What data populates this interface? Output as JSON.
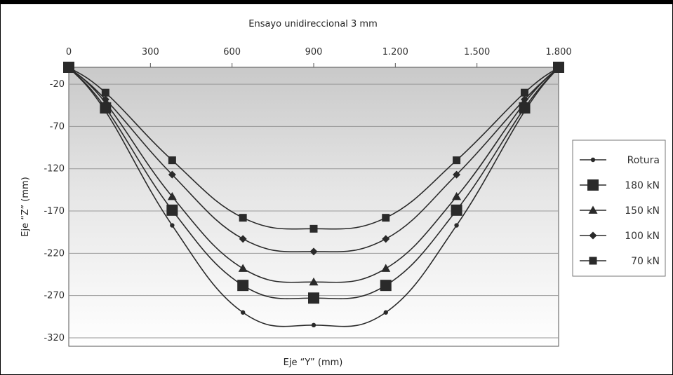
{
  "chart_data": {
    "type": "line",
    "title": "Ensayo unidireccional 3 mm",
    "xlabel": "Eje “Y” (mm)",
    "ylabel": "Eje “Z” (mm)",
    "xlim": [
      0,
      1800
    ],
    "ylim": [
      -330,
      0
    ],
    "x_ticks": [
      0,
      300,
      600,
      900,
      1200,
      1500,
      1800
    ],
    "x_tick_labels": [
      "0",
      "300",
      "600",
      "900",
      "1.200",
      "1.500",
      "1.800"
    ],
    "y_ticks": [
      -20,
      -70,
      -120,
      -170,
      -220,
      -270,
      -320
    ],
    "y_tick_labels": [
      "-20",
      "-70",
      "-120",
      "-170",
      "-220",
      "-270",
      "-320"
    ],
    "x": [
      0,
      135,
      380,
      640,
      900,
      1165,
      1425,
      1675,
      1800
    ],
    "grid": true,
    "legend_position": "right",
    "series": [
      {
        "name": "Rotura",
        "marker": "circle",
        "values": [
          0,
          -52,
          -187,
          -290,
          -305,
          -290,
          -187,
          -52,
          0
        ]
      },
      {
        "name": "180 kN",
        "marker": "large-square",
        "values": [
          0,
          -48,
          -169,
          -258,
          -273,
          -258,
          -169,
          -48,
          0
        ]
      },
      {
        "name": "150 kN",
        "marker": "triangle",
        "values": [
          0,
          -42,
          -153,
          -238,
          -254,
          -238,
          -153,
          -42,
          0
        ]
      },
      {
        "name": "100 kN",
        "marker": "diamond",
        "values": [
          0,
          -38,
          -127,
          -203,
          -218,
          -203,
          -127,
          -38,
          0
        ]
      },
      {
        "name": "70 kN",
        "marker": "square",
        "values": [
          0,
          -30,
          -110,
          -178,
          -191,
          -178,
          -110,
          -30,
          0
        ]
      }
    ],
    "colors": {
      "line": "#2a2a2a",
      "grid": "#999999",
      "plot_bg_top": "#c9c9c9",
      "plot_bg_bottom": "#ffffff"
    }
  }
}
